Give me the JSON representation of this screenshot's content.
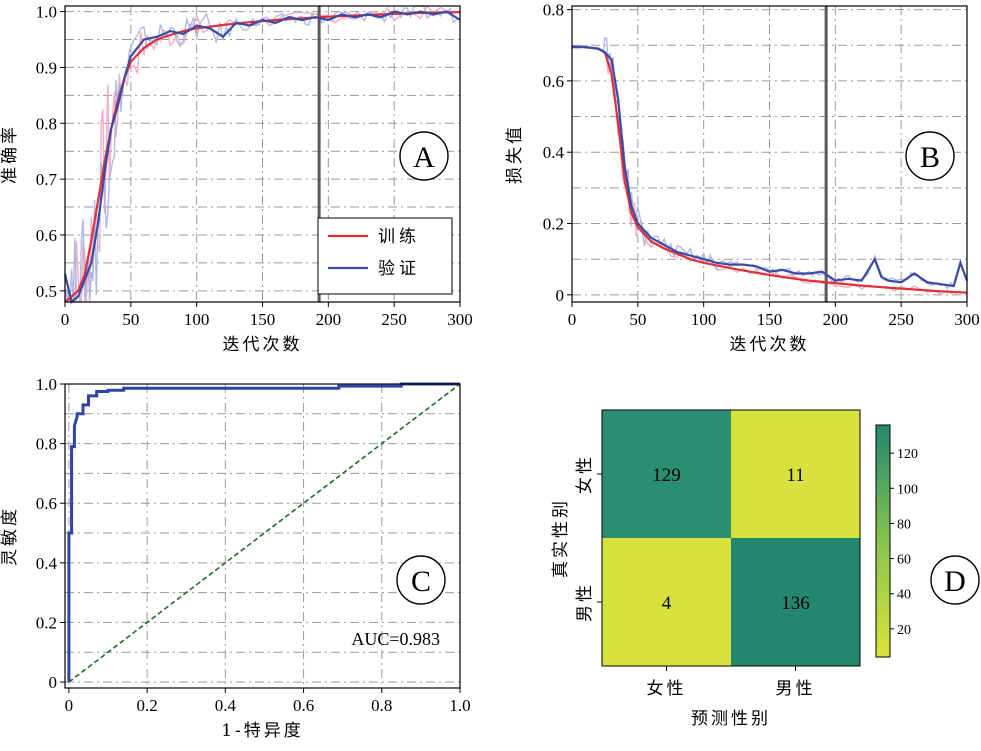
{
  "chart_data": [
    {
      "panel": "A",
      "type": "line",
      "xlabel": "迭代次数",
      "ylabel": "准确率",
      "xlim": [
        0,
        300
      ],
      "ylim": [
        0.48,
        1.01
      ],
      "xticks": [
        0,
        50,
        100,
        150,
        200,
        250,
        300
      ],
      "yticks": [
        0.5,
        0.6,
        0.7,
        0.8,
        0.9,
        1.0
      ],
      "ytick_labels": [
        "0.5",
        "0.6",
        "0.7",
        "0.8",
        "0.9",
        "1.0"
      ],
      "vline_x": 193,
      "grid": true,
      "legend_position": "lower-right",
      "series": [
        {
          "name": "训练",
          "color": "#e0303a",
          "raw_color": "#f2a5b8",
          "x": [
            0,
            5,
            10,
            15,
            20,
            25,
            30,
            35,
            40,
            45,
            50,
            60,
            70,
            80,
            90,
            100,
            120,
            140,
            160,
            180,
            200,
            220,
            240,
            260,
            280,
            300
          ],
          "y": [
            0.48,
            0.49,
            0.5,
            0.53,
            0.59,
            0.66,
            0.73,
            0.79,
            0.84,
            0.88,
            0.91,
            0.935,
            0.95,
            0.958,
            0.965,
            0.97,
            0.976,
            0.981,
            0.985,
            0.988,
            0.991,
            0.993,
            0.995,
            0.997,
            0.998,
            0.999
          ]
        },
        {
          "name": "验证",
          "color": "#3a4aa6",
          "raw_color": "#a9b3e0",
          "x": [
            0,
            5,
            10,
            15,
            20,
            25,
            30,
            35,
            40,
            45,
            50,
            60,
            70,
            80,
            90,
            100,
            110,
            120,
            130,
            140,
            150,
            160,
            170,
            180,
            190,
            200,
            210,
            220,
            230,
            240,
            250,
            260,
            270,
            280,
            290,
            300
          ],
          "y": [
            0.53,
            0.48,
            0.49,
            0.52,
            0.55,
            0.62,
            0.71,
            0.79,
            0.83,
            0.88,
            0.92,
            0.95,
            0.955,
            0.965,
            0.96,
            0.975,
            0.97,
            0.955,
            0.98,
            0.975,
            0.985,
            0.98,
            0.99,
            0.985,
            0.99,
            0.985,
            0.995,
            0.99,
            0.995,
            0.99,
            1.0,
            0.995,
            1.0,
            0.995,
            1.0,
            0.985
          ]
        }
      ]
    },
    {
      "panel": "B",
      "type": "line",
      "xlabel": "迭代次数",
      "ylabel": "损失值",
      "xlim": [
        0,
        300
      ],
      "ylim": [
        -0.02,
        0.81
      ],
      "xticks": [
        0,
        50,
        100,
        150,
        200,
        250,
        300
      ],
      "yticks": [
        0,
        0.2,
        0.4,
        0.6,
        0.8
      ],
      "ytick_labels": [
        "0",
        "0.2",
        "0.4",
        "0.6",
        "0.8"
      ],
      "vline_x": 193,
      "grid": true,
      "series": [
        {
          "name": "训练",
          "color": "#e0303a",
          "raw_color": "#f2a5b8",
          "x": [
            0,
            10,
            20,
            25,
            30,
            35,
            40,
            45,
            50,
            60,
            70,
            80,
            90,
            100,
            120,
            140,
            160,
            180,
            200,
            220,
            240,
            260,
            280,
            300
          ],
          "y": [
            0.695,
            0.695,
            0.69,
            0.68,
            0.62,
            0.48,
            0.32,
            0.23,
            0.19,
            0.15,
            0.13,
            0.115,
            0.1,
            0.09,
            0.075,
            0.062,
            0.05,
            0.04,
            0.033,
            0.026,
            0.02,
            0.015,
            0.01,
            0.006
          ]
        },
        {
          "name": "验证",
          "color": "#3a4aa6",
          "raw_color": "#a9b3e0",
          "x": [
            0,
            10,
            20,
            25,
            30,
            35,
            40,
            45,
            50,
            60,
            70,
            80,
            90,
            100,
            110,
            120,
            130,
            140,
            150,
            160,
            170,
            180,
            190,
            200,
            210,
            220,
            230,
            235,
            240,
            250,
            260,
            270,
            280,
            290,
            295,
            300
          ],
          "y": [
            0.695,
            0.695,
            0.69,
            0.68,
            0.66,
            0.55,
            0.36,
            0.25,
            0.2,
            0.16,
            0.14,
            0.12,
            0.11,
            0.1,
            0.09,
            0.085,
            0.085,
            0.08,
            0.065,
            0.07,
            0.06,
            0.06,
            0.065,
            0.04,
            0.045,
            0.04,
            0.1,
            0.05,
            0.04,
            0.035,
            0.06,
            0.035,
            0.03,
            0.025,
            0.09,
            0.04
          ]
        }
      ]
    },
    {
      "panel": "C",
      "type": "line",
      "xlabel": "1-特异度",
      "ylabel": "灵敏度",
      "xlim": [
        -0.01,
        1.0
      ],
      "ylim": [
        -0.02,
        1.0
      ],
      "xticks": [
        0,
        0.2,
        0.4,
        0.6,
        0.8,
        1.0
      ],
      "xtick_labels": [
        "0",
        "0.2",
        "0.4",
        "0.6",
        "0.8",
        "1.0"
      ],
      "yticks": [
        0,
        0.2,
        0.4,
        0.6,
        0.8,
        1.0
      ],
      "ytick_labels": [
        "0",
        "0.2",
        "0.4",
        "0.6",
        "0.8",
        "1.0"
      ],
      "grid": true,
      "annotation": "AUC=0.983",
      "series": [
        {
          "role": "roc",
          "color": "#2f43a8",
          "x": [
            0,
            0,
            0.007,
            0.007,
            0.007,
            0.014,
            0.014,
            0.021,
            0.021,
            0.036,
            0.036,
            0.05,
            0.05,
            0.071,
            0.071,
            0.1,
            0.1,
            0.14,
            0.14,
            0.3,
            0.5,
            0.69,
            0.69,
            0.85,
            0.85,
            1.0
          ],
          "y": [
            0,
            0.5,
            0.5,
            0.71,
            0.79,
            0.79,
            0.86,
            0.89,
            0.9,
            0.9,
            0.93,
            0.93,
            0.96,
            0.96,
            0.975,
            0.975,
            0.979,
            0.979,
            0.986,
            0.986,
            0.986,
            0.986,
            0.993,
            0.993,
            1.0,
            1.0
          ]
        },
        {
          "role": "diagonal",
          "color": "#1e6b2a",
          "x": [
            0,
            1
          ],
          "y": [
            0,
            1
          ]
        }
      ]
    },
    {
      "panel": "D",
      "type": "heatmap",
      "xlabel": "预测性别",
      "ylabel": "真实性别",
      "x_categories": [
        "女性",
        "男性"
      ],
      "y_categories": [
        "女性",
        "男性"
      ],
      "values": [
        [
          129,
          11
        ],
        [
          4,
          136
        ]
      ],
      "cell_colors": [
        [
          "#2a8f70",
          "#d9e23d"
        ],
        [
          "#d9e23d",
          "#23876f"
        ]
      ],
      "colorbar": {
        "ticks": [
          20,
          40,
          60,
          80,
          100,
          120
        ],
        "min": 4,
        "max": 136,
        "low_color": "#dbe33a",
        "high_color": "#23876f"
      }
    }
  ],
  "panel_labels": [
    "A",
    "B",
    "C",
    "D"
  ]
}
